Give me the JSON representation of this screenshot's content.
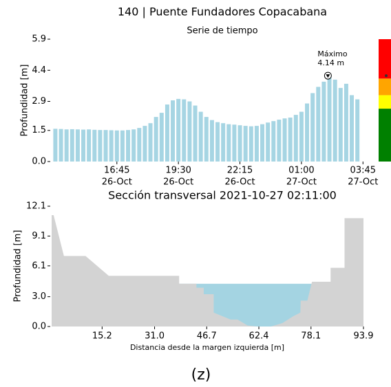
{
  "chart_data": [
    {
      "type": "bar",
      "title": "140 | Puente Fundadores Copacabana",
      "subtitle": "Serie de tiempo",
      "y_label": "Profundidad [m]",
      "color": "#a6d5e3",
      "x": [
        "26-Oct 14:00",
        "26-Oct 14:15",
        "26-Oct 14:30",
        "26-Oct 14:45",
        "26-Oct 15:00",
        "26-Oct 15:15",
        "26-Oct 15:30",
        "26-Oct 15:45",
        "26-Oct 16:00",
        "26-Oct 16:15",
        "26-Oct 16:30",
        "26-Oct 16:45",
        "26-Oct 17:00",
        "26-Oct 17:15",
        "26-Oct 17:30",
        "26-Oct 17:45",
        "26-Oct 18:00",
        "26-Oct 18:15",
        "26-Oct 18:30",
        "26-Oct 18:45",
        "26-Oct 19:00",
        "26-Oct 19:15",
        "26-Oct 19:30",
        "26-Oct 19:45",
        "26-Oct 20:00",
        "26-Oct 20:15",
        "26-Oct 20:30",
        "26-Oct 20:45",
        "26-Oct 21:00",
        "26-Oct 21:15",
        "26-Oct 21:30",
        "26-Oct 21:45",
        "26-Oct 22:00",
        "26-Oct 22:15",
        "26-Oct 22:30",
        "26-Oct 22:45",
        "26-Oct 23:00",
        "26-Oct 23:15",
        "26-Oct 23:30",
        "26-Oct 23:45",
        "27-Oct 00:00",
        "27-Oct 00:15",
        "27-Oct 00:30",
        "27-Oct 00:45",
        "27-Oct 01:00",
        "27-Oct 01:15",
        "27-Oct 01:30",
        "27-Oct 01:45",
        "27-Oct 02:00",
        "27-Oct 02:15",
        "27-Oct 02:30",
        "27-Oct 02:45",
        "27-Oct 03:00",
        "27-Oct 03:15",
        "27-Oct 03:30"
      ],
      "values": [
        1.58,
        1.57,
        1.55,
        1.56,
        1.55,
        1.54,
        1.55,
        1.53,
        1.52,
        1.52,
        1.51,
        1.5,
        1.5,
        1.52,
        1.55,
        1.62,
        1.72,
        1.85,
        2.15,
        2.35,
        2.75,
        2.95,
        3.02,
        3.0,
        2.9,
        2.7,
        2.4,
        2.15,
        2.0,
        1.9,
        1.85,
        1.8,
        1.78,
        1.75,
        1.72,
        1.7,
        1.72,
        1.8,
        1.88,
        1.95,
        2.02,
        2.08,
        2.12,
        2.25,
        2.4,
        2.8,
        3.3,
        3.6,
        3.85,
        4.14,
        3.95,
        3.55,
        3.75,
        3.2,
        3.0
      ],
      "xlim": [
        "26-Oct 13:50",
        "27-Oct 03:50"
      ],
      "xticks": [
        {
          "value": "26-Oct 16:45",
          "label": [
            "16:45",
            "26-Oct"
          ]
        },
        {
          "value": "26-Oct 19:30",
          "label": [
            "19:30",
            "26-Oct"
          ]
        },
        {
          "value": "26-Oct 22:15",
          "label": [
            "22:15",
            "26-Oct"
          ]
        },
        {
          "value": "27-Oct 01:00",
          "label": [
            "01:00",
            "27-Oct"
          ]
        },
        {
          "value": "27-Oct 03:45",
          "label": [
            "03:45",
            "27-Oct"
          ]
        }
      ],
      "ylim": [
        0,
        5.9
      ],
      "yticks": [
        {
          "value": 0,
          "label": "0.0"
        },
        1.5,
        2.9,
        4.4,
        5.9
      ],
      "annotation": {
        "label": "Máximo",
        "value_label": "4.14 m",
        "value": 4.14,
        "x": "27-Oct 02:11"
      },
      "levels": [
        {
          "color": "#008000",
          "to": 2.55
        },
        {
          "color": "#ffff00",
          "to": 3.2
        },
        {
          "color": "#ffa500",
          "to": 4.0
        },
        {
          "color": "#ff0000",
          "to": 5.9
        }
      ]
    },
    {
      "type": "area",
      "title": "Sección transversal 2021-10-27 02:11:00",
      "x_label": "Distancia desde la margen izquierda [m]",
      "y_label": "Profundidad [m]",
      "color": "#d3d3d3",
      "water_color": "#a4d4e2",
      "water_level": 4.3,
      "water_from": 38.4,
      "water_to": 78.4,
      "x": [
        0,
        0.6,
        3.7,
        10.2,
        17.2,
        38.4,
        38.4,
        43.6,
        43.6,
        45.8,
        45.8,
        48.8,
        48.8,
        53.9,
        56,
        59,
        62,
        66,
        69.5,
        72.6,
        74.9,
        75,
        77,
        78.4,
        84,
        84,
        88.2,
        88.2,
        93.9
      ],
      "values": [
        11.2,
        11.2,
        7.1,
        7.1,
        5.1,
        5.1,
        4.3,
        4.3,
        3.9,
        3.9,
        3.25,
        3.25,
        1.4,
        0.7,
        0.7,
        0.1,
        0,
        0,
        0.35,
        1.0,
        1.4,
        2.6,
        2.6,
        4.5,
        4.5,
        5.9,
        5.9,
        10.9,
        10.9
      ],
      "xlim": [
        0,
        93.9
      ],
      "xticks": [
        15.2,
        {
          "value": 31,
          "label": "31.0"
        },
        46.7,
        62.4,
        78.1,
        93.9
      ],
      "ylim": [
        0,
        12.1
      ],
      "yticks": [
        {
          "value": 0,
          "label": "0.0"
        },
        {
          "value": 3,
          "label": "3.0"
        },
        6.1,
        9.1,
        12.1
      ]
    }
  ],
  "caption": "(z)"
}
